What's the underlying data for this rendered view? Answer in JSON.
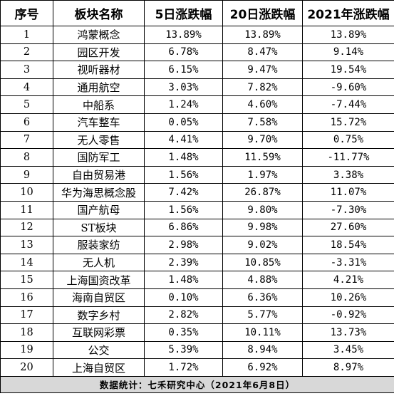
{
  "table": {
    "headers": [
      "序号",
      "板块名称",
      "5日涨跌幅",
      "20日涨跌幅",
      "2021年涨跌幅"
    ],
    "rows": [
      [
        "1",
        "鸿蒙概念",
        "13.89%",
        "13.89%",
        "13.89%"
      ],
      [
        "2",
        "园区开发",
        "6.78%",
        "8.47%",
        "9.14%"
      ],
      [
        "3",
        "视听器材",
        "6.15%",
        "9.47%",
        "19.54%"
      ],
      [
        "4",
        "通用航空",
        "3.03%",
        "7.82%",
        "-9.60%"
      ],
      [
        "5",
        "中船系",
        "1.24%",
        "4.60%",
        "-7.44%"
      ],
      [
        "6",
        "汽车整车",
        "0.05%",
        "7.58%",
        "15.72%"
      ],
      [
        "7",
        "无人零售",
        "4.41%",
        "9.70%",
        "0.75%"
      ],
      [
        "8",
        "国防军工",
        "1.48%",
        "11.59%",
        "-11.77%"
      ],
      [
        "9",
        "自由贸易港",
        "1.56%",
        "1.97%",
        "3.38%"
      ],
      [
        "10",
        "华为海思概念股",
        "7.42%",
        "26.87%",
        "11.07%"
      ],
      [
        "11",
        "国产航母",
        "1.56%",
        "9.80%",
        "-7.30%"
      ],
      [
        "12",
        "ST板块",
        "6.86%",
        "9.98%",
        "27.60%"
      ],
      [
        "13",
        "服装家纺",
        "2.98%",
        "9.02%",
        "18.54%"
      ],
      [
        "14",
        "无人机",
        "2.39%",
        "10.85%",
        "-3.31%"
      ],
      [
        "15",
        "上海国资改革",
        "1.48%",
        "4.88%",
        "4.21%"
      ],
      [
        "16",
        "海南自贸区",
        "0.10%",
        "6.36%",
        "10.26%"
      ],
      [
        "17",
        "数字乡村",
        "2.82%",
        "5.77%",
        "-0.92%"
      ],
      [
        "18",
        "互联网彩票",
        "0.35%",
        "10.11%",
        "13.73%"
      ],
      [
        "19",
        "公交",
        "5.39%",
        "8.94%",
        "3.45%"
      ],
      [
        "20",
        "上海自贸区",
        "1.72%",
        "6.92%",
        "8.97%"
      ]
    ],
    "footer": "数据统计：七禾研究中心（2021年6月8日）"
  }
}
